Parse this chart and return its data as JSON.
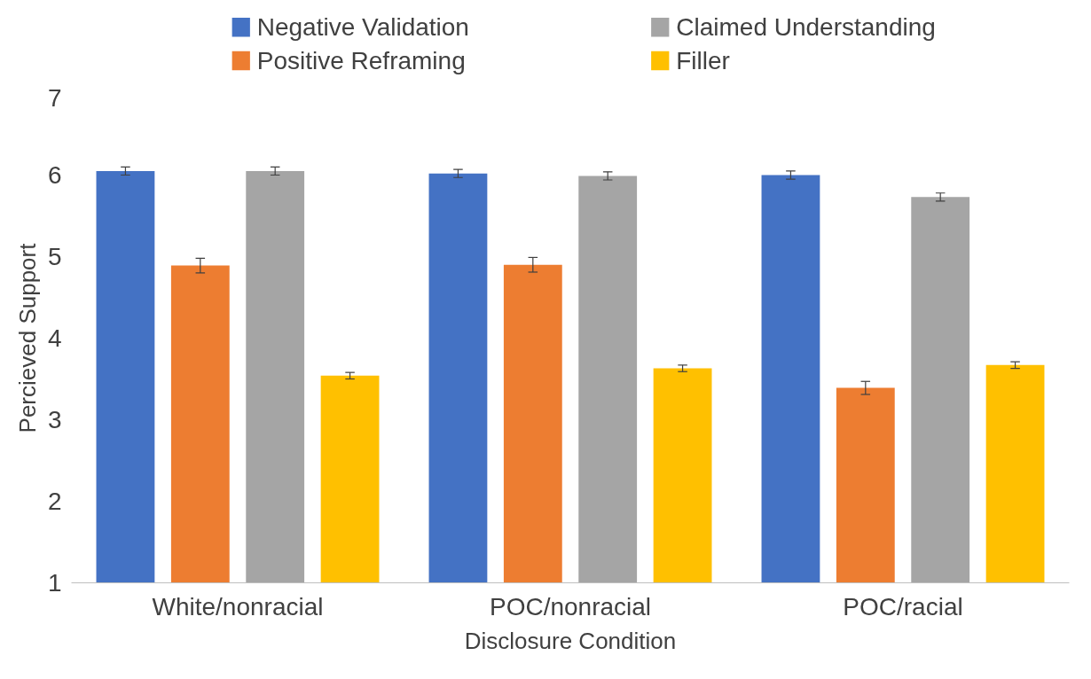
{
  "chart_data": {
    "type": "bar",
    "xlabel": "Disclosure Condition",
    "ylabel": "Percieved Support",
    "categories": [
      "White/nonracial",
      "POC/nonracial",
      "POC/racial"
    ],
    "series": [
      {
        "name": "Negative Validation",
        "color": "#4472c4",
        "values": [
          6.05,
          6.02,
          6.0
        ],
        "errors": [
          0.05,
          0.05,
          0.05
        ]
      },
      {
        "name": "Positive Reframing",
        "color": "#ed7d31",
        "values": [
          4.89,
          4.9,
          3.39
        ],
        "errors": [
          0.09,
          0.09,
          0.08
        ]
      },
      {
        "name": "Claimed Understanding",
        "color": "#a5a5a5",
        "values": [
          6.05,
          5.99,
          5.73
        ],
        "errors": [
          0.05,
          0.05,
          0.05
        ]
      },
      {
        "name": "Filler",
        "color": "#ffc000",
        "values": [
          3.54,
          3.63,
          3.67
        ],
        "errors": [
          0.04,
          0.04,
          0.04
        ]
      }
    ],
    "ylim": [
      1,
      7
    ],
    "yticks": [
      1,
      2,
      3,
      4,
      5,
      6,
      7
    ],
    "grid": false,
    "legend": "top"
  }
}
